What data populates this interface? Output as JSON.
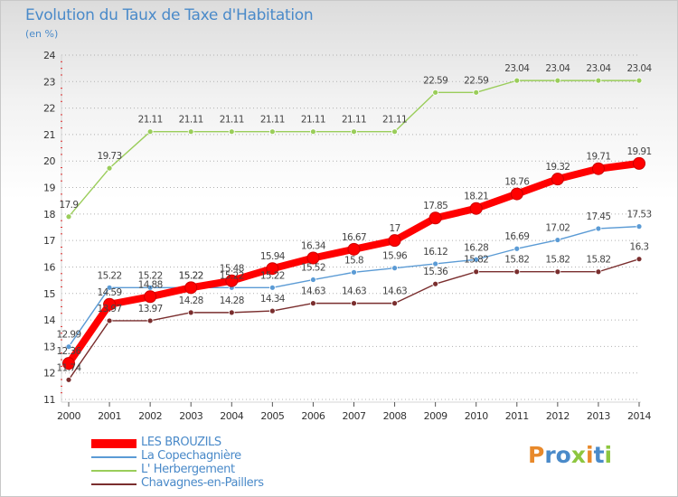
{
  "title": "Evolution du Taux de Taxe d'Habitation",
  "subtitle": "(en %)",
  "brand": "Proxiti",
  "colors": {
    "title": "#4a8ac9",
    "grid": "#aaaaaa",
    "brand_letters": [
      "#e8892b",
      "#4a8ac9",
      "#4a8ac9",
      "#8dc63f",
      "#e8892b",
      "#4a8ac9",
      "#8dc63f"
    ]
  },
  "chart_data": {
    "type": "line",
    "title": "Evolution du Taux de Taxe d'Habitation",
    "ylabel": "(en %)",
    "xlabel": "",
    "x": [
      "2000",
      "2001",
      "2002",
      "2003",
      "2004",
      "2005",
      "2006",
      "2007",
      "2008",
      "2009",
      "2010",
      "2011",
      "2012",
      "2013",
      "2014"
    ],
    "yticks": [
      "11",
      "12",
      "13",
      "14",
      "15",
      "16",
      "17",
      "18",
      "19",
      "20",
      "21",
      "22",
      "23",
      "24"
    ],
    "ylim": [
      11,
      24
    ],
    "grid": "horizontal dotted",
    "legend_position": "bottom-left",
    "series": [
      {
        "name": "LES BROUZILS",
        "color": "#ff0000",
        "values": [
          12.36,
          14.59,
          14.88,
          15.22,
          15.48,
          15.94,
          16.34,
          16.67,
          17,
          17.85,
          18.21,
          18.76,
          19.32,
          19.71,
          19.91
        ],
        "labels": [
          "12.36",
          "14.59",
          "14.88",
          "15.22",
          "15.48",
          "15.94",
          "16.34",
          "16.67",
          "17",
          "17.85",
          "18.21",
          "18.76",
          "19.32",
          "19.71",
          "19.91"
        ]
      },
      {
        "name": "La Copechagnière",
        "color": "#5b9bd5",
        "values": [
          12.99,
          15.22,
          15.22,
          15.22,
          15.22,
          15.22,
          15.52,
          15.8,
          15.96,
          16.12,
          16.28,
          16.69,
          17.02,
          17.45,
          17.53
        ],
        "labels": [
          "12.99",
          "15.22",
          "15.22",
          "15.22",
          "15.22",
          "15.22",
          "15.52",
          "15.8",
          "15.96",
          "16.12",
          "16.28",
          "16.69",
          "17.02",
          "17.45",
          "17.53"
        ]
      },
      {
        "name": "L' Herbergement",
        "color": "#9acd5a",
        "values": [
          17.9,
          19.73,
          21.11,
          21.11,
          21.11,
          21.11,
          21.11,
          21.11,
          21.11,
          22.59,
          22.59,
          23.04,
          23.04,
          23.04,
          23.04
        ],
        "labels": [
          "17.9",
          "19.73",
          "21.11",
          "21.11",
          "21.11",
          "21.11",
          "21.11",
          "21.11",
          "21.11",
          "22.59",
          "22.59",
          "23.04",
          "23.04",
          "23.04",
          "23.04"
        ]
      },
      {
        "name": "Chavagnes-en-Paillers",
        "color": "#7a2e2e",
        "values": [
          11.74,
          13.97,
          13.97,
          14.28,
          14.28,
          14.34,
          14.63,
          14.63,
          14.63,
          15.36,
          15.82,
          15.82,
          15.82,
          15.82,
          16.3
        ],
        "labels": [
          "11.74",
          "13.97",
          "13.97",
          "14.28",
          "14.28",
          "14.34",
          "14.63",
          "14.63",
          "14.63",
          "15.36",
          "15.82",
          "15.82",
          "15.82",
          "15.82",
          "16.3"
        ]
      }
    ]
  }
}
